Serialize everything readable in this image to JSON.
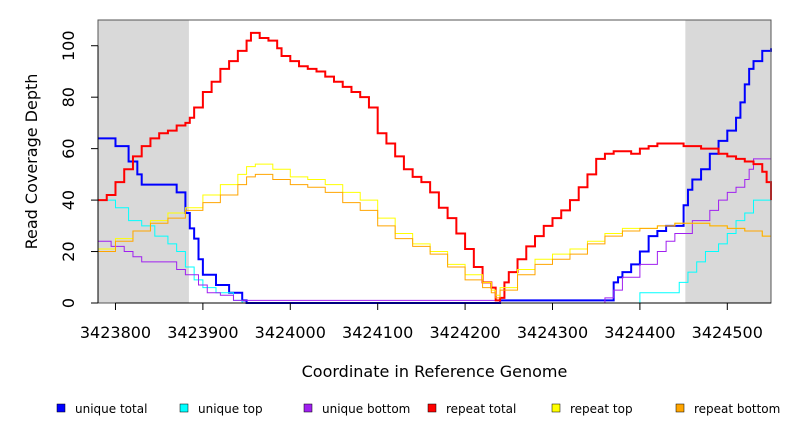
{
  "chart_data": {
    "type": "line",
    "xlabel": "Coordinate in Reference Genome",
    "ylabel": "Read Coverage Depth",
    "xlim": [
      3423780,
      3424550
    ],
    "ylim": [
      0,
      110
    ],
    "x_ticks": [
      3423800,
      3423900,
      3424000,
      3424100,
      3424200,
      3424300,
      3424400,
      3424500
    ],
    "x_tick_labels": [
      "3423800",
      "3423900",
      "3424000",
      "3424100",
      "3424200",
      "3424300",
      "3424400",
      "3424500"
    ],
    "y_ticks": [
      0,
      20,
      40,
      60,
      80,
      100
    ],
    "y_tick_labels": [
      "0",
      "20",
      "40",
      "60",
      "80",
      "100"
    ],
    "shaded_regions": [
      [
        3423780,
        3423884
      ],
      [
        3424452,
        3424550
      ]
    ],
    "shade_color": "#d9d9d9",
    "grid": false,
    "legend_position": "bottom",
    "series": [
      {
        "name": "unique total",
        "color": "#0000ff",
        "width": 2,
        "x": [
          3423780,
          3423800,
          3423815,
          3423825,
          3423830,
          3423870,
          3423880,
          3423885,
          3423890,
          3423895,
          3423900,
          3423915,
          3423930,
          3423945,
          3423950,
          3424240,
          3424370,
          3424375,
          3424380,
          3424390,
          3424400,
          3424410,
          3424420,
          3424430,
          3424440,
          3424450,
          3424455,
          3424460,
          3424470,
          3424480,
          3424490,
          3424500,
          3424510,
          3424515,
          3424520,
          3424525,
          3424530,
          3424540,
          3424550
        ],
        "y": [
          64,
          61,
          55,
          50,
          46,
          43,
          35,
          29,
          25,
          17,
          11,
          7,
          4,
          1,
          0,
          1,
          8,
          10,
          12,
          15,
          20,
          26,
          28,
          30,
          30,
          38,
          44,
          48,
          52,
          58,
          63,
          67,
          72,
          78,
          85,
          91,
          94,
          98,
          99
        ]
      },
      {
        "name": "unique top",
        "color": "#00ffff",
        "width": 1,
        "x": [
          3423780,
          3423800,
          3423815,
          3423830,
          3423845,
          3423860,
          3423870,
          3423880,
          3423890,
          3423900,
          3423915,
          3423935,
          3423945,
          3424400,
          3424440,
          3424445,
          3424455,
          3424465,
          3424475,
          3424490,
          3424500,
          3424510,
          3424520,
          3424530,
          3424550
        ],
        "y": [
          40,
          37,
          32,
          30,
          26,
          23,
          20,
          14,
          9,
          6,
          4,
          1,
          0,
          4,
          4,
          8,
          12,
          16,
          20,
          23,
          27,
          32,
          35,
          40,
          42
        ]
      },
      {
        "name": "unique bottom",
        "color": "#a020f0",
        "width": 1,
        "x": [
          3423780,
          3423795,
          3423810,
          3423820,
          3423830,
          3423860,
          3423870,
          3423880,
          3423895,
          3423905,
          3423920,
          3423935,
          3424240,
          3424360,
          3424370,
          3424380,
          3424400,
          3424420,
          3424430,
          3424440,
          3424460,
          3424480,
          3424490,
          3424500,
          3424510,
          3424520,
          3424525,
          3424530,
          3424550
        ],
        "y": [
          24,
          22,
          20,
          18,
          16,
          16,
          13,
          11,
          7,
          4,
          3,
          1,
          0,
          2,
          5,
          10,
          15,
          20,
          24,
          27,
          32,
          36,
          40,
          43,
          45,
          48,
          52,
          56,
          56
        ]
      },
      {
        "name": "repeat total",
        "color": "#ff0000",
        "width": 2,
        "x": [
          3423780,
          3423790,
          3423800,
          3423810,
          3423820,
          3423830,
          3423840,
          3423850,
          3423860,
          3423870,
          3423880,
          3423885,
          3423890,
          3423900,
          3423910,
          3423920,
          3423930,
          3423940,
          3423950,
          3423955,
          3423965,
          3423975,
          3423985,
          3423990,
          3424000,
          3424010,
          3424020,
          3424030,
          3424040,
          3424050,
          3424060,
          3424070,
          3424080,
          3424090,
          3424100,
          3424110,
          3424120,
          3424130,
          3424140,
          3424150,
          3424160,
          3424170,
          3424180,
          3424190,
          3424200,
          3424210,
          3424220,
          3424230,
          3424235,
          3424240,
          3424245,
          3424250,
          3424260,
          3424270,
          3424280,
          3424290,
          3424300,
          3424310,
          3424320,
          3424330,
          3424340,
          3424350,
          3424360,
          3424370,
          3424380,
          3424390,
          3424400,
          3424410,
          3424420,
          3424430,
          3424440,
          3424450,
          3424460,
          3424470,
          3424480,
          3424490,
          3424500,
          3424510,
          3424520,
          3424530,
          3424540,
          3424545,
          3424550
        ],
        "y": [
          40,
          42,
          47,
          52,
          57,
          61,
          64,
          66,
          67,
          69,
          70,
          72,
          76,
          82,
          86,
          91,
          94,
          98,
          102,
          105,
          103,
          102,
          99,
          96,
          94,
          92,
          91,
          90,
          88,
          86,
          84,
          82,
          80,
          76,
          66,
          62,
          57,
          52,
          49,
          47,
          43,
          37,
          33,
          27,
          21,
          14,
          8,
          6,
          1,
          2,
          8,
          12,
          17,
          22,
          26,
          30,
          33,
          36,
          40,
          45,
          50,
          56,
          58,
          59,
          59,
          58,
          60,
          61,
          62,
          62,
          62,
          61,
          61,
          60,
          60,
          58,
          57,
          56,
          55,
          54,
          51,
          47,
          40
        ]
      },
      {
        "name": "repeat top",
        "color": "#ffff00",
        "width": 1,
        "x": [
          3423780,
          3423800,
          3423820,
          3423840,
          3423860,
          3423880,
          3423900,
          3423920,
          3423940,
          3423950,
          3423960,
          3423980,
          3424000,
          3424020,
          3424040,
          3424060,
          3424080,
          3424100,
          3424120,
          3424140,
          3424160,
          3424180,
          3424200,
          3424220,
          3424230,
          3424235,
          3424240,
          3424260,
          3424280,
          3424300,
          3424320,
          3424340,
          3424360,
          3424380,
          3424400,
          3424420,
          3424440,
          3424460,
          3424480,
          3424500,
          3424520,
          3424540,
          3424550
        ],
        "y": [
          21,
          25,
          28,
          32,
          35,
          37,
          42,
          46,
          50,
          53,
          54,
          52,
          49,
          48,
          46,
          43,
          40,
          33,
          27,
          23,
          20,
          15,
          11,
          8,
          5,
          3,
          6,
          13,
          17,
          19,
          21,
          24,
          27,
          29,
          29,
          30,
          31,
          31,
          30,
          29,
          28,
          26,
          21
        ]
      },
      {
        "name": "repeat bottom",
        "color": "#ffa500",
        "width": 1,
        "x": [
          3423780,
          3423800,
          3423820,
          3423840,
          3423860,
          3423880,
          3423900,
          3423920,
          3423940,
          3423950,
          3423960,
          3423980,
          3424000,
          3424020,
          3424040,
          3424060,
          3424080,
          3424100,
          3424120,
          3424140,
          3424160,
          3424180,
          3424200,
          3424220,
          3424230,
          3424235,
          3424240,
          3424260,
          3424280,
          3424300,
          3424320,
          3424340,
          3424360,
          3424380,
          3424400,
          3424420,
          3424440,
          3424460,
          3424480,
          3424500,
          3424520,
          3424540,
          3424550
        ],
        "y": [
          20,
          24,
          28,
          31,
          33,
          36,
          39,
          42,
          46,
          49,
          50,
          48,
          46,
          45,
          43,
          39,
          36,
          30,
          25,
          22,
          19,
          14,
          9,
          6,
          4,
          2,
          5,
          11,
          15,
          17,
          19,
          23,
          26,
          28,
          29,
          30,
          31,
          31,
          30,
          29,
          28,
          26,
          20
        ]
      }
    ]
  }
}
